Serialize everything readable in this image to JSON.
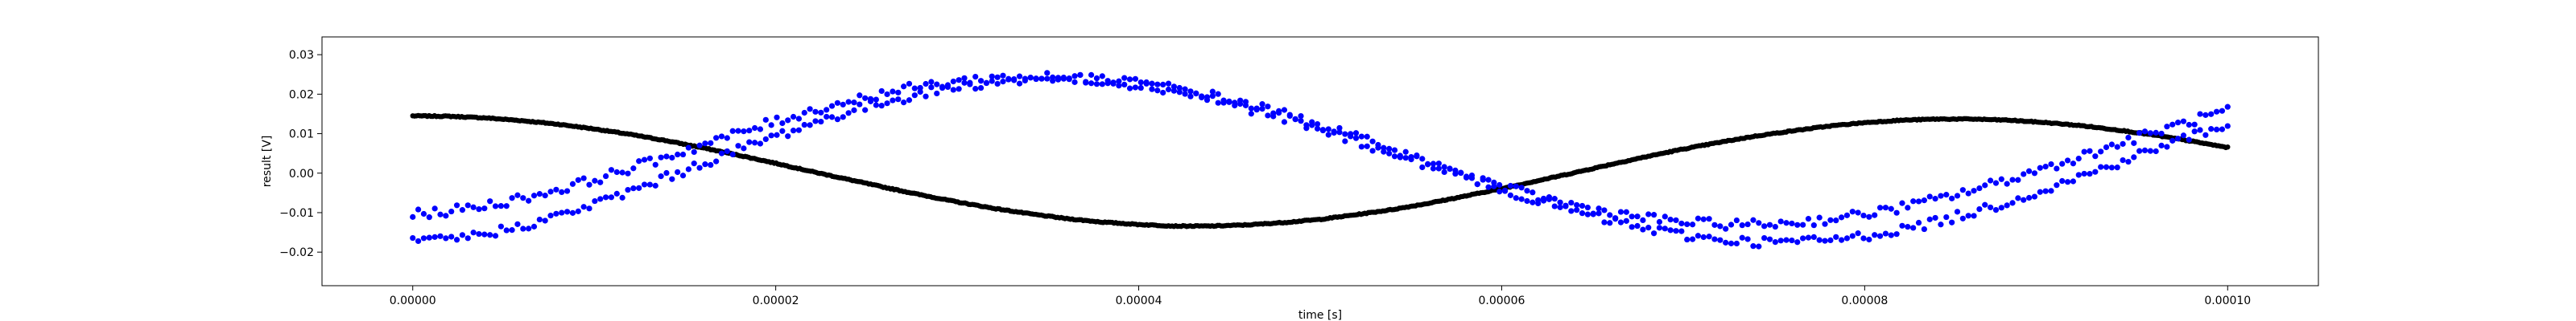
{
  "chart_data": {
    "type": "scatter",
    "title": "",
    "xlabel": "time [s]",
    "ylabel": "result [V]",
    "xlim": [
      -5e-06,
      0.000105
    ],
    "ylim": [
      -0.0285,
      0.0345
    ],
    "grid": false,
    "xticks": [
      0,
      2e-05,
      4e-05,
      6e-05,
      8e-05,
      0.0001
    ],
    "xtick_labels": [
      "0.00000",
      "0.00002",
      "0.00004",
      "0.00006",
      "0.00008",
      "0.00010"
    ],
    "yticks": [
      -0.02,
      -0.01,
      0,
      0.01,
      0.02,
      0.03
    ],
    "ytick_labels": [
      "−0.02",
      "−0.01",
      "0.00",
      "0.01",
      "0.02",
      "0.03"
    ],
    "series": [
      {
        "color": "#000000",
        "marker_size": 3.2,
        "x": [
          0,
          2e-06,
          4e-06,
          6e-06,
          8e-06,
          1e-05,
          1.2e-05,
          1.4e-05,
          1.6e-05,
          1.8e-05,
          2e-05,
          2.2e-05,
          2.4e-05,
          2.6e-05,
          2.8e-05,
          3e-05,
          3.2e-05,
          3.4e-05,
          3.6e-05,
          3.8e-05,
          4e-05,
          4.2e-05,
          4.4e-05,
          4.6e-05,
          4.8e-05,
          5e-05,
          5.2e-05,
          5.4e-05,
          5.6e-05,
          5.8e-05,
          6e-05,
          6.2e-05,
          6.4e-05,
          6.6e-05,
          6.8e-05,
          7e-05,
          7.2e-05,
          7.4e-05,
          7.6e-05,
          7.8e-05,
          8e-05,
          8.2e-05,
          8.4e-05,
          8.6e-05,
          8.8e-05,
          9e-05,
          9.2e-05,
          9.4e-05,
          9.6e-05,
          9.8e-05,
          0.0001
        ],
        "y": [
          0.0145,
          0.0144,
          0.014,
          0.0133,
          0.0124,
          0.0112,
          0.0098,
          0.0082,
          0.0064,
          0.0045,
          0.0025,
          0.0004,
          -0.0016,
          -0.0036,
          -0.0055,
          -0.0073,
          -0.0089,
          -0.0103,
          -0.0115,
          -0.0124,
          -0.013,
          -0.0134,
          -0.0134,
          -0.0131,
          -0.0125,
          -0.0117,
          -0.0105,
          -0.0092,
          -0.0076,
          -0.0058,
          -0.0039,
          -0.0019,
          0.0001,
          0.0022,
          0.0042,
          0.0061,
          0.0078,
          0.0094,
          0.0107,
          0.0119,
          0.0128,
          0.0134,
          0.0137,
          0.0137,
          0.0134,
          0.0128,
          0.012,
          0.0109,
          0.0096,
          0.0081,
          0.0065
        ],
        "y_note_scale": 1
      },
      {
        "color": "#0000ff",
        "marker_size": 3.6,
        "x": [
          0,
          2e-06,
          4e-06,
          6e-06,
          8e-06,
          1e-05,
          1.2e-05,
          1.4e-05,
          1.6e-05,
          1.8e-05,
          2e-05,
          2.2e-05,
          2.4e-05,
          2.6e-05,
          2.8e-05,
          3e-05,
          3.2e-05,
          3.4e-05,
          3.6e-05,
          3.8e-05,
          4e-05,
          4.2e-05,
          4.4e-05,
          4.6e-05,
          4.8e-05,
          5e-05,
          5.2e-05,
          5.4e-05,
          5.6e-05,
          5.8e-05,
          6e-05,
          6.2e-05,
          6.4e-05,
          6.6e-05,
          6.8e-05,
          7e-05,
          7.2e-05,
          7.4e-05,
          7.6e-05,
          7.8e-05,
          8e-05,
          8.2e-05,
          8.4e-05,
          8.6e-05,
          8.8e-05,
          9e-05,
          9.2e-05,
          9.4e-05,
          9.6e-05,
          9.8e-05,
          0.0001
        ],
        "y": [
          -0.0105,
          -0.0096,
          -0.0082,
          -0.0064,
          -0.0042,
          -0.0016,
          0.0012,
          0.0042,
          0.0072,
          0.0102,
          0.0131,
          0.0158,
          0.0182,
          0.0203,
          0.022,
          0.0233,
          0.0241,
          0.0244,
          0.0242,
          0.0235,
          0.0224,
          0.0208,
          0.0188,
          0.0165,
          0.0139,
          0.0111,
          0.0081,
          0.0051,
          0.0021,
          -0.0008,
          -0.0035,
          -0.006,
          -0.0082,
          -0.01,
          -0.0114,
          -0.0124,
          -0.0129,
          -0.013,
          -0.0126,
          -0.0117,
          -0.0104,
          -0.0087,
          -0.0066,
          -0.0042,
          -0.0015,
          0.0014,
          0.0044,
          0.0074,
          0.0104,
          0.0132,
          0.0158
        ]
      },
      {
        "color": "#0000ff",
        "marker_size": 3.6,
        "x": [
          0,
          2e-06,
          4e-06,
          6e-06,
          8e-06,
          1e-05,
          1.2e-05,
          1.4e-05,
          1.6e-05,
          1.8e-05,
          2e-05,
          2.2e-05,
          2.4e-05,
          2.6e-05,
          2.8e-05,
          3e-05,
          3.2e-05,
          3.4e-05,
          3.6e-05,
          3.8e-05,
          4e-05,
          4.2e-05,
          4.4e-05,
          4.6e-05,
          4.8e-05,
          5e-05,
          5.2e-05,
          5.4e-05,
          5.6e-05,
          5.8e-05,
          6e-05,
          6.2e-05,
          6.4e-05,
          6.6e-05,
          6.8e-05,
          7e-05,
          7.2e-05,
          7.4e-05,
          7.6e-05,
          7.8e-05,
          8e-05,
          8.2e-05,
          8.4e-05,
          8.6e-05,
          8.8e-05,
          9e-05,
          9.2e-05,
          9.4e-05,
          9.6e-05,
          9.8e-05,
          0.0001
        ],
        "y": [
          -0.0175,
          -0.0168,
          -0.0154,
          -0.0134,
          -0.0109,
          -0.0079,
          -0.0046,
          -0.0011,
          0.0025,
          0.006,
          0.0094,
          0.0126,
          0.0155,
          0.018,
          0.0201,
          0.0218,
          0.023,
          0.0237,
          0.0239,
          0.0236,
          0.0228,
          0.0215,
          0.0197,
          0.0175,
          0.015,
          0.0121,
          0.009,
          0.0058,
          0.0025,
          -0.0008,
          -0.004,
          -0.007,
          -0.0097,
          -0.0121,
          -0.0141,
          -0.0157,
          -0.0168,
          -0.0174,
          -0.0174,
          -0.0169,
          -0.0159,
          -0.0143,
          -0.0123,
          -0.0099,
          -0.0071,
          -0.004,
          -0.0007,
          0.0027,
          0.0061,
          0.0094,
          0.0125
        ]
      }
    ]
  }
}
